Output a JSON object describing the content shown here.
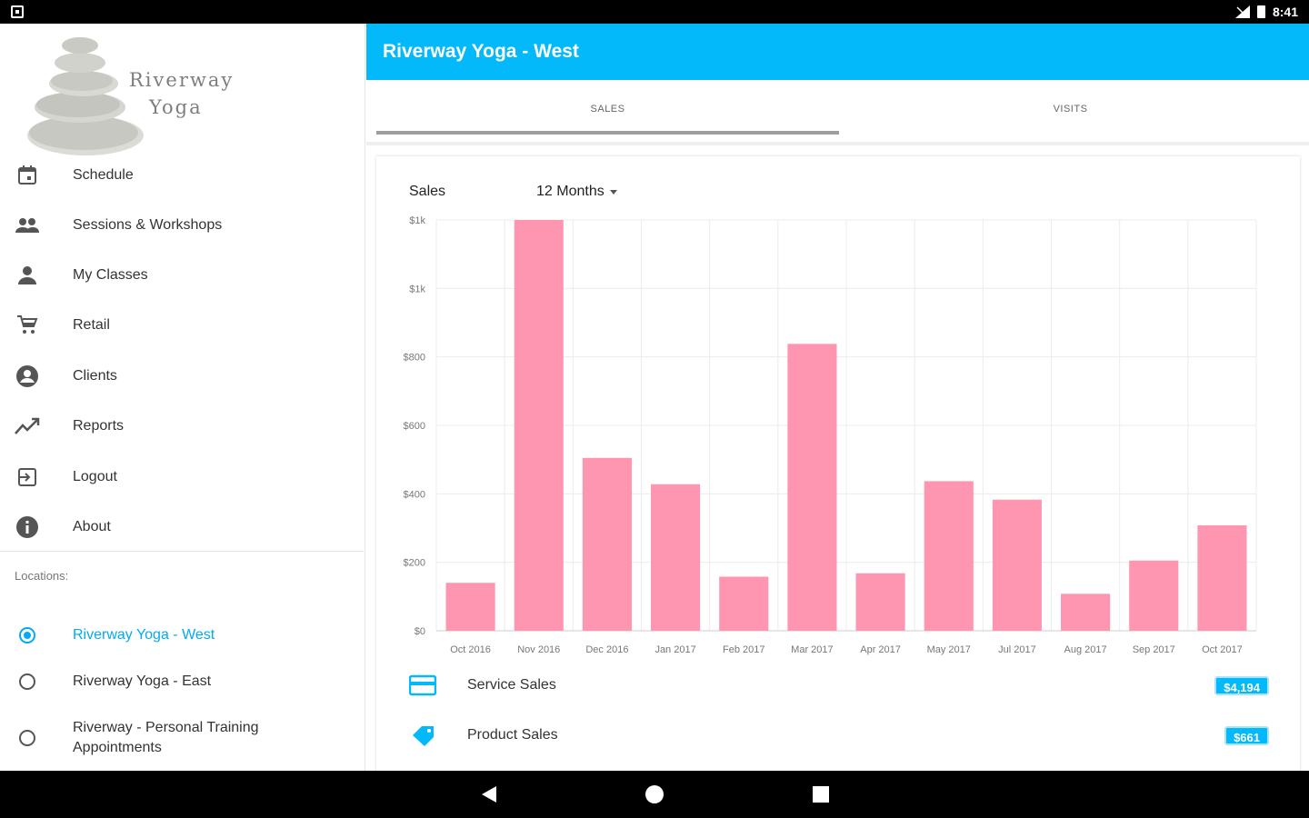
{
  "status_bar": {
    "time": "8:41"
  },
  "drawer": {
    "logo_text_line1": "Riverway",
    "logo_text_line2": "Yoga",
    "nav_items": [
      {
        "label": "Schedule",
        "icon": "calendar-icon"
      },
      {
        "label": "Sessions & Workshops",
        "icon": "group-icon"
      },
      {
        "label": "My Classes",
        "icon": "person-icon"
      },
      {
        "label": "Retail",
        "icon": "cart-icon"
      },
      {
        "label": "Clients",
        "icon": "account-circle-icon"
      },
      {
        "label": "Reports",
        "icon": "trending-up-icon"
      },
      {
        "label": "Logout",
        "icon": "logout-icon"
      },
      {
        "label": "About",
        "icon": "info-icon"
      }
    ],
    "locations_heading": "Locations:",
    "locations": [
      {
        "label": "Riverway Yoga - West",
        "selected": true
      },
      {
        "label": "Riverway Yoga - East",
        "selected": false
      },
      {
        "label": "Riverway - Personal Training Appointments",
        "selected": false
      }
    ]
  },
  "app_bar": {
    "title": "Riverway Yoga - West"
  },
  "tabs": [
    {
      "label": "SALES",
      "active": true
    },
    {
      "label": "VISITS",
      "active": false
    }
  ],
  "card": {
    "title": "Sales",
    "range": "12 Months"
  },
  "chart_data": {
    "type": "bar",
    "categories": [
      "Oct 2016",
      "Nov 2016",
      "Dec 2016",
      "Jan 2017",
      "Feb 2017",
      "Mar 2017",
      "Apr 2017",
      "May 2017",
      "Jul 2017",
      "Aug 2017",
      "Sep 2017",
      "Oct 2017"
    ],
    "values": [
      140,
      1200,
      505,
      428,
      158,
      838,
      168,
      437,
      383,
      108,
      205,
      308
    ],
    "ytick_labels": [
      "$0",
      "$200",
      "$400",
      "$600",
      "$800",
      "$1k",
      "$1k"
    ],
    "ytick_values": [
      0,
      200,
      400,
      600,
      800,
      1000,
      1200
    ],
    "ylim": [
      0,
      1200
    ],
    "bar_color": "#ff96b1",
    "grid": true
  },
  "legend": [
    {
      "label": "Service Sales",
      "value": "$4,194",
      "icon": "credit-card-icon"
    },
    {
      "label": "Product Sales",
      "value": "$661",
      "icon": "tag-icon"
    }
  ],
  "colors": {
    "accent": "#03b9f9",
    "bar": "#ff96b1"
  }
}
